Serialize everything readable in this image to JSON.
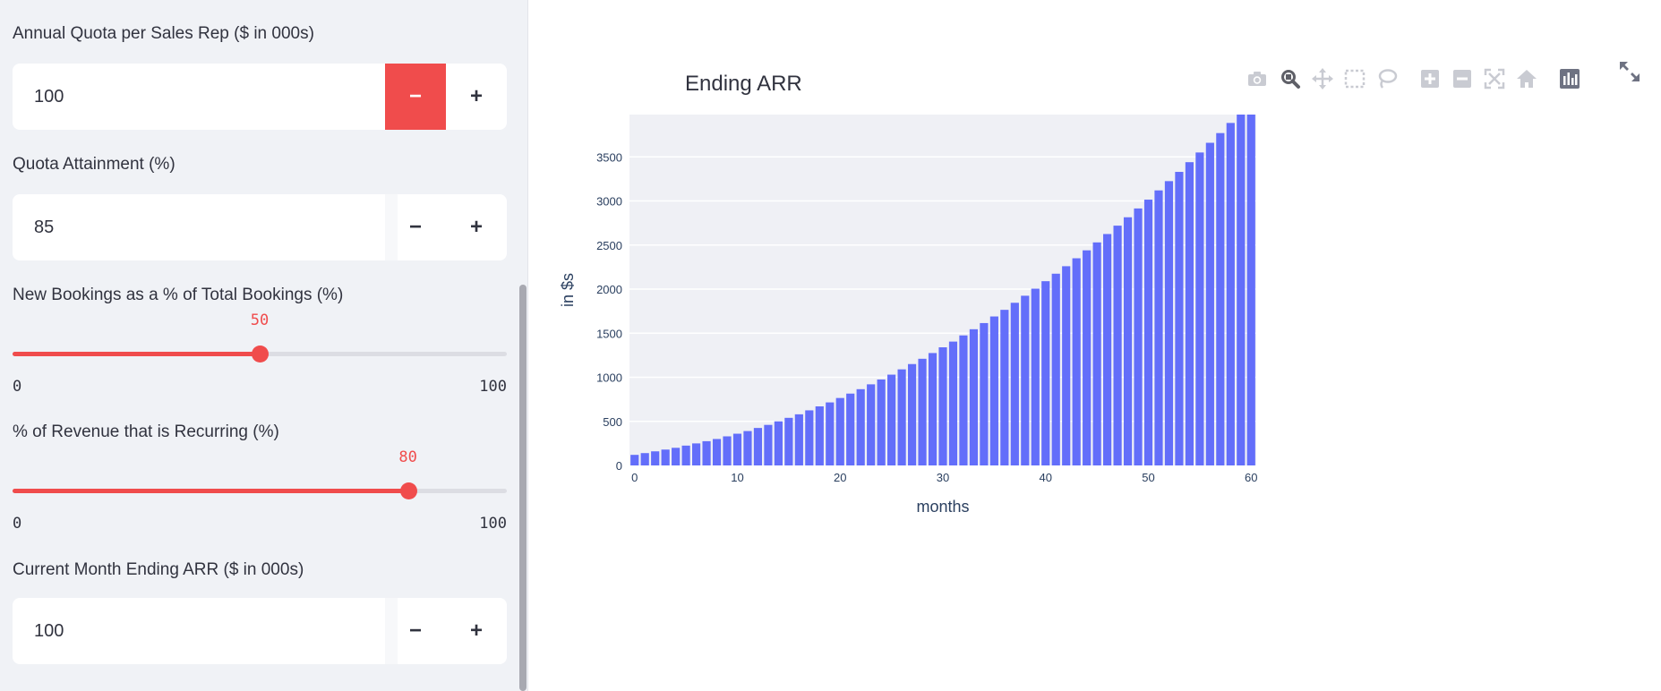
{
  "sidebar": {
    "quota": {
      "label": "Annual Quota per Sales Rep ($ in 000s)",
      "value": "100",
      "minus": "−",
      "plus": "+"
    },
    "attainment": {
      "label": "Quota Attainment (%)",
      "value": "85",
      "minus": "−",
      "plus": "+"
    },
    "new_bookings": {
      "label": "New Bookings as a % of Total Bookings (%)",
      "value": 50,
      "value_text": "50",
      "min": "0",
      "max": "100"
    },
    "recurring": {
      "label": "% of Revenue that is Recurring (%)",
      "value": 80,
      "value_text": "80",
      "min": "0",
      "max": "100"
    },
    "ending_arr": {
      "label": "Current Month Ending ARR ($ in 000s)",
      "value": "100",
      "minus": "−",
      "plus": "+"
    }
  },
  "toolbar": {
    "icons": [
      "camera-icon",
      "zoom-icon",
      "pan-icon",
      "box-select-icon",
      "lasso-select-icon",
      "zoom-in-icon",
      "zoom-out-icon",
      "autoscale-icon",
      "reset-axes-icon",
      "plotly-logo-icon"
    ],
    "fullscreen_icon": "fullscreen-icon"
  },
  "colors": {
    "accent": "#f04c4c",
    "bar": "#636efa",
    "plot_bg": "#eff0f5",
    "sidebar_bg": "#f0f2f6"
  },
  "chart_data": {
    "type": "bar",
    "title": "Ending ARR",
    "xlabel": "months",
    "ylabel": "in $s",
    "x": [
      0,
      1,
      2,
      3,
      4,
      5,
      6,
      7,
      8,
      9,
      10,
      11,
      12,
      13,
      14,
      15,
      16,
      17,
      18,
      19,
      20,
      21,
      22,
      23,
      24,
      25,
      26,
      27,
      28,
      29,
      30,
      31,
      32,
      33,
      34,
      35,
      36,
      37,
      38,
      39,
      40,
      41,
      42,
      43,
      44,
      45,
      46,
      47,
      48,
      49,
      50,
      51,
      52,
      53,
      54,
      55,
      56,
      57,
      58,
      59,
      60
    ],
    "values": [
      120,
      140,
      160,
      180,
      200,
      225,
      250,
      275,
      300,
      330,
      360,
      390,
      425,
      460,
      500,
      540,
      580,
      625,
      670,
      715,
      765,
      815,
      865,
      920,
      975,
      1030,
      1090,
      1150,
      1210,
      1275,
      1340,
      1405,
      1475,
      1545,
      1615,
      1690,
      1765,
      1845,
      1925,
      2005,
      2090,
      2175,
      2260,
      2350,
      2440,
      2530,
      2625,
      2720,
      2815,
      2915,
      3015,
      3120,
      3225,
      3330,
      3440,
      3550,
      3660,
      3770,
      3885,
      4000,
      4120
    ],
    "xlim": [
      -0.5,
      60.5
    ],
    "ylim": [
      0,
      3980
    ],
    "xticks": [
      0,
      10,
      20,
      30,
      40,
      50,
      60
    ],
    "yticks": [
      0,
      500,
      1000,
      1500,
      2000,
      2500,
      3000,
      3500
    ],
    "grid": true
  }
}
